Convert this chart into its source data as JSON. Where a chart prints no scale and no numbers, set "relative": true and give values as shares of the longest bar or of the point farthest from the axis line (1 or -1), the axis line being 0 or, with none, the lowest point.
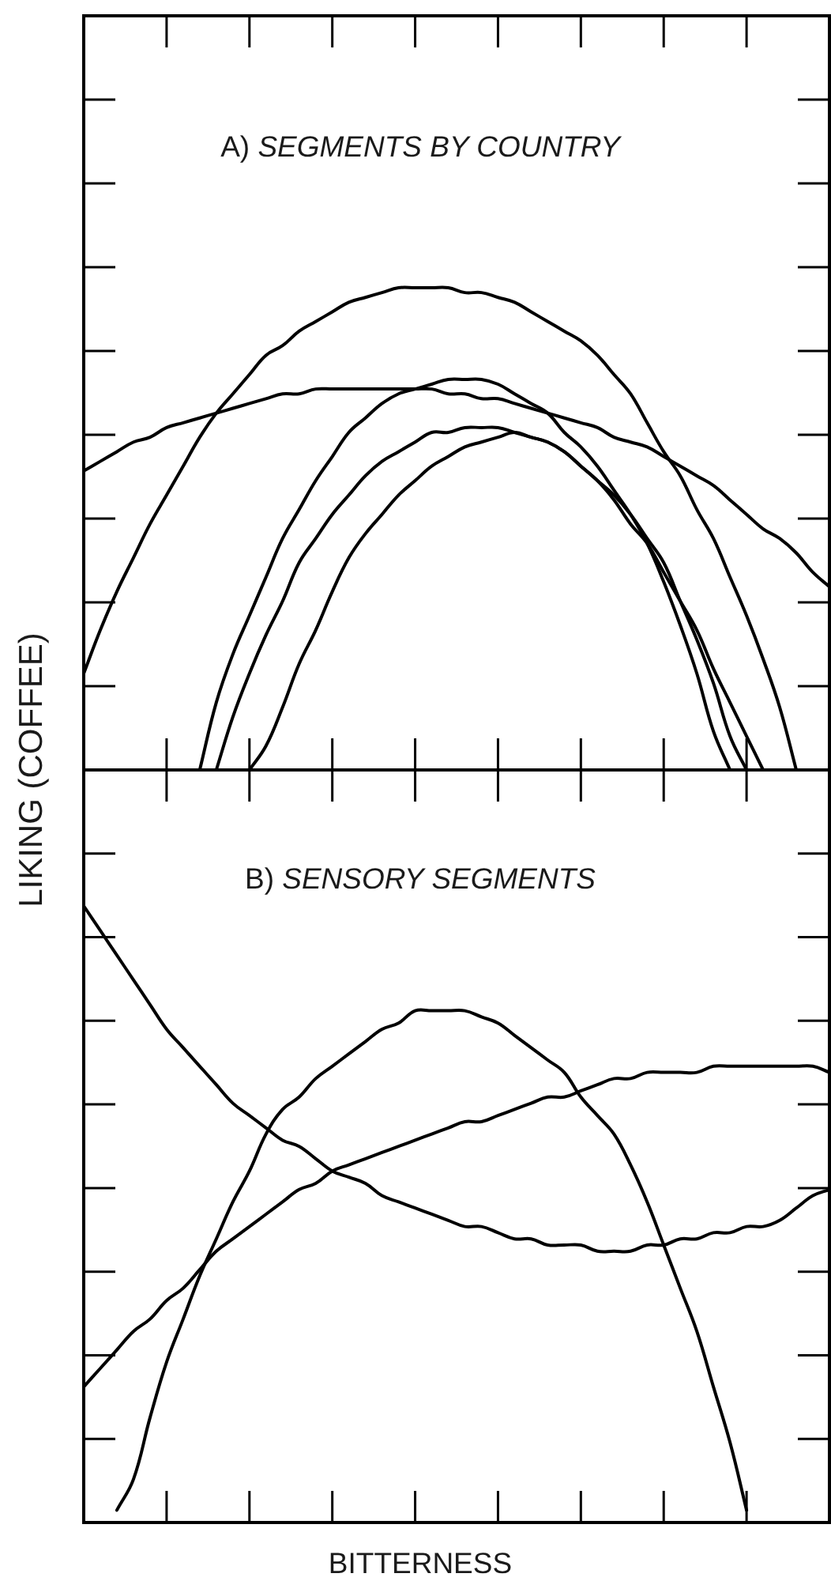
{
  "chart_data": [
    {
      "type": "line",
      "relative": true,
      "ylabel": "LIKING (COFFEE)",
      "annotations": [
        "A) SEGMENTS BY COUNTRY"
      ],
      "categories": [
        null,
        null,
        null,
        null,
        null,
        null,
        null,
        null,
        null,
        null,
        null,
        null,
        null,
        null,
        null,
        null,
        null,
        null,
        null,
        null,
        null,
        null,
        null,
        null,
        null,
        null,
        null,
        null,
        null,
        null,
        null,
        null,
        null,
        null,
        null,
        null,
        null,
        null,
        null,
        null,
        null,
        null,
        null,
        null,
        null,
        null
      ],
      "series": [
        {
          "color": "#000000",
          "values": [
            0.2,
            0.29,
            0.37,
            0.44,
            0.51,
            0.57,
            0.63,
            0.69,
            0.74,
            0.78,
            0.82,
            0.86,
            0.88,
            0.91,
            0.93,
            0.95,
            0.97,
            0.98,
            0.99,
            1.0,
            1.0,
            1.0,
            1.0,
            0.99,
            0.99,
            0.98,
            0.97,
            0.95,
            0.93,
            0.91,
            0.89,
            0.86,
            0.82,
            0.78,
            0.72,
            0.66,
            0.61,
            0.54,
            0.48,
            0.4,
            0.32,
            0.23,
            0.13,
            0,
            null,
            null
          ]
        },
        {
          "color": "#000000",
          "values": [
            0.62,
            0.64,
            0.66,
            0.68,
            0.69,
            0.71,
            0.72,
            0.73,
            0.74,
            0.75,
            0.76,
            0.77,
            0.78,
            0.78,
            0.79,
            0.79,
            0.79,
            0.79,
            0.79,
            0.79,
            0.79,
            0.79,
            0.78,
            0.78,
            0.77,
            0.77,
            0.76,
            0.75,
            0.74,
            0.73,
            0.72,
            0.71,
            0.69,
            0.68,
            0.67,
            0.65,
            0.63,
            0.61,
            0.59,
            0.56,
            0.53,
            0.5,
            0.48,
            0.45,
            0.41,
            0.38
          ]
        },
        {
          "color": "#000000",
          "values": [
            null,
            null,
            null,
            null,
            null,
            null,
            null,
            0,
            0.14,
            0.24,
            0.32,
            0.4,
            0.48,
            0.54,
            0.6,
            0.65,
            0.7,
            0.73,
            0.76,
            0.78,
            0.79,
            0.8,
            0.81,
            0.81,
            0.81,
            0.8,
            0.78,
            0.76,
            0.74,
            0.7,
            0.67,
            0.63,
            0.58,
            0.53,
            0.47,
            0.39,
            0.3,
            0.2,
            0.08,
            0,
            null,
            null,
            null,
            null,
            null,
            null
          ]
        },
        {
          "color": "#000000",
          "values": [
            null,
            null,
            null,
            null,
            null,
            null,
            null,
            null,
            0,
            0.11,
            0.2,
            0.28,
            0.35,
            0.43,
            0.48,
            0.53,
            0.57,
            0.61,
            0.64,
            0.66,
            0.68,
            0.7,
            0.7,
            0.71,
            0.71,
            0.71,
            0.7,
            0.69,
            0.68,
            0.66,
            0.63,
            0.6,
            0.57,
            0.53,
            0.48,
            0.43,
            0.35,
            0.27,
            0.18,
            0.07,
            0,
            null,
            null,
            null,
            null,
            null
          ]
        },
        {
          "color": "#000000",
          "values": [
            null,
            null,
            null,
            null,
            null,
            null,
            null,
            null,
            null,
            null,
            0,
            0.05,
            0.13,
            0.22,
            0.29,
            0.37,
            0.44,
            0.49,
            0.53,
            0.57,
            0.6,
            0.63,
            0.65,
            0.67,
            0.68,
            0.69,
            0.7,
            0.69,
            0.68,
            0.66,
            0.63,
            0.6,
            0.56,
            0.51,
            0.47,
            0.41,
            0.35,
            0.29,
            0.21,
            0.14,
            0.07,
            0,
            null,
            null,
            null,
            null
          ]
        }
      ]
    },
    {
      "type": "line",
      "relative": true,
      "xlabel": "BITTERNESS",
      "annotations": [
        "B) SENSORY SEGMENTS"
      ],
      "categories": [
        null,
        null,
        null,
        null,
        null,
        null,
        null,
        null,
        null,
        null,
        null,
        null,
        null,
        null,
        null,
        null,
        null,
        null,
        null,
        null,
        null,
        null,
        null,
        null,
        null,
        null,
        null,
        null,
        null,
        null,
        null,
        null,
        null,
        null,
        null,
        null,
        null,
        null,
        null,
        null,
        null,
        null,
        null,
        null,
        null,
        null
      ],
      "series": [
        {
          "color": "#000000",
          "values": [
            1.0,
            0.96,
            0.92,
            0.88,
            0.84,
            0.8,
            0.77,
            0.74,
            0.71,
            0.68,
            0.66,
            0.64,
            0.62,
            0.61,
            0.59,
            0.57,
            0.56,
            0.55,
            0.53,
            0.52,
            0.51,
            0.5,
            0.49,
            0.48,
            0.48,
            0.47,
            0.46,
            0.46,
            0.45,
            0.45,
            0.45,
            0.44,
            0.44,
            0.44,
            0.45,
            0.45,
            0.46,
            0.46,
            0.47,
            0.47,
            0.48,
            0.48,
            0.49,
            0.51,
            0.53,
            0.54
          ]
        },
        {
          "color": "#000000",
          "values": [
            null,
            null,
            0.02,
            0.07,
            0.17,
            0.26,
            0.33,
            0.4,
            0.46,
            0.52,
            0.57,
            0.63,
            0.67,
            0.69,
            0.72,
            0.74,
            0.76,
            0.78,
            0.8,
            0.81,
            0.83,
            0.83,
            0.83,
            0.83,
            0.82,
            0.81,
            0.79,
            0.77,
            0.75,
            0.73,
            0.69,
            0.66,
            0.63,
            0.58,
            0.52,
            0.45,
            0.38,
            0.31,
            0.22,
            0.13,
            0.02,
            null,
            null,
            null,
            null,
            null
          ]
        },
        {
          "color": "#000000",
          "values": [
            0.22,
            0.25,
            0.28,
            0.31,
            0.33,
            0.36,
            0.38,
            0.41,
            0.44,
            0.46,
            0.48,
            0.5,
            0.52,
            0.54,
            0.55,
            0.57,
            0.58,
            0.59,
            0.6,
            0.61,
            0.62,
            0.63,
            0.64,
            0.65,
            0.65,
            0.66,
            0.67,
            0.68,
            0.69,
            0.69,
            0.7,
            0.71,
            0.72,
            0.72,
            0.73,
            0.73,
            0.73,
            0.73,
            0.74,
            0.74,
            0.74,
            0.74,
            0.74,
            0.74,
            0.74,
            0.73
          ]
        }
      ]
    }
  ]
}
